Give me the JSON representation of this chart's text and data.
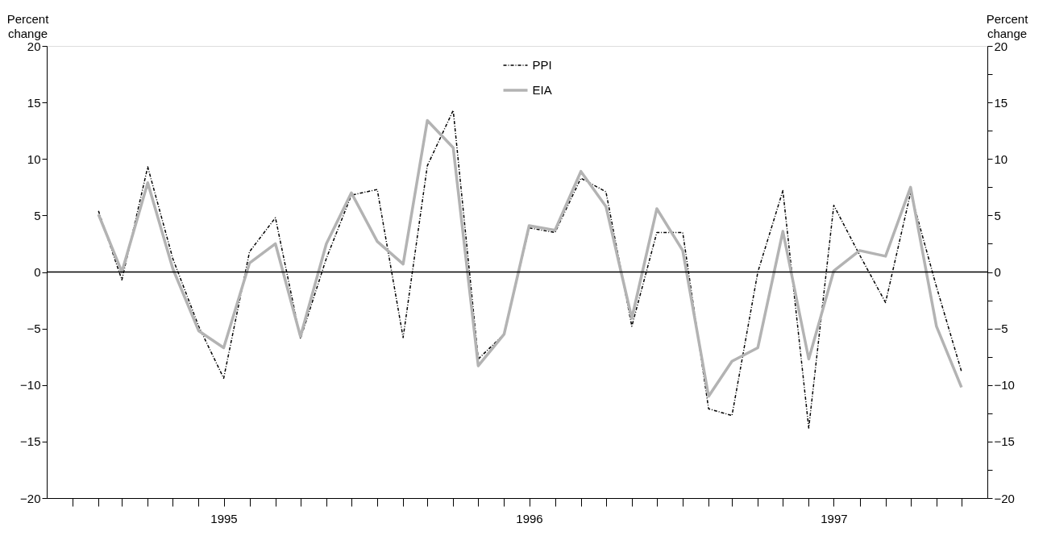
{
  "chart_data": {
    "type": "line",
    "ylabel": "Percent change",
    "y2label": "Percent change",
    "x": [
      "1995-02",
      "1995-03",
      "1995-04",
      "1995-05",
      "1995-06",
      "1995-07",
      "1995-08",
      "1995-09",
      "1995-10",
      "1995-11",
      "1995-12",
      "1996-01",
      "1996-02",
      "1996-03",
      "1996-04",
      "1996-05",
      "1996-06",
      "1996-07",
      "1996-08",
      "1996-09",
      "1996-10",
      "1996-11",
      "1996-12",
      "1997-01",
      "1997-02",
      "1997-03",
      "1997-04",
      "1997-05",
      "1997-06",
      "1997-07",
      "1997-08",
      "1997-09",
      "1997-10",
      "1997-11",
      "1997-12"
    ],
    "series": [
      {
        "name": "PPI",
        "color": "#000000",
        "line_style": "dashed",
        "values": [
          5.4,
          -0.7,
          9.3,
          1.2,
          -4.8,
          -9.4,
          1.8,
          4.8,
          -5.9,
          1.2,
          6.8,
          7.3,
          -5.8,
          9.4,
          14.3,
          -7.7,
          -5.5,
          3.9,
          3.5,
          8.3,
          7.1,
          -4.8,
          3.5,
          3.5,
          -12.1,
          -12.7,
          0.0,
          7.2,
          -13.8,
          5.9,
          1.5,
          -2.7,
          7.0,
          -1.3,
          -8.8
        ]
      },
      {
        "name": "EIA",
        "color": "#b3b3b3",
        "line_style": "solid",
        "values": [
          5.1,
          0.0,
          7.9,
          0.3,
          -5.2,
          -6.7,
          0.8,
          2.5,
          -5.7,
          2.5,
          7.0,
          2.7,
          0.7,
          13.4,
          11.0,
          -8.3,
          -5.5,
          4.1,
          3.7,
          8.9,
          5.8,
          -4.1,
          5.6,
          1.9,
          -11.0,
          -7.9,
          -6.7,
          3.6,
          -7.7,
          0.1,
          1.9,
          1.4,
          7.5,
          -4.8,
          -10.2
        ]
      }
    ],
    "xlim": [
      "1994-12",
      "1998-01"
    ],
    "xticks": [
      {
        "value": "1995-01",
        "label": null
      },
      {
        "value": "1995-02",
        "label": null
      },
      {
        "value": "1995-03",
        "label": null
      },
      {
        "value": "1995-04",
        "label": null
      },
      {
        "value": "1995-05",
        "label": null
      },
      {
        "value": "1995-06",
        "label": null
      },
      {
        "value": "1995-07",
        "label": "1995"
      },
      {
        "value": "1995-08",
        "label": null
      },
      {
        "value": "1995-09",
        "label": null
      },
      {
        "value": "1995-10",
        "label": null
      },
      {
        "value": "1995-11",
        "label": null
      },
      {
        "value": "1995-12",
        "label": null
      },
      {
        "value": "1996-01",
        "label": null
      },
      {
        "value": "1996-02",
        "label": null
      },
      {
        "value": "1996-03",
        "label": null
      },
      {
        "value": "1996-04",
        "label": null
      },
      {
        "value": "1996-05",
        "label": null
      },
      {
        "value": "1996-06",
        "label": null
      },
      {
        "value": "1996-07",
        "label": "1996"
      },
      {
        "value": "1996-08",
        "label": null
      },
      {
        "value": "1996-09",
        "label": null
      },
      {
        "value": "1996-10",
        "label": null
      },
      {
        "value": "1996-11",
        "label": null
      },
      {
        "value": "1996-12",
        "label": null
      },
      {
        "value": "1997-01",
        "label": null
      },
      {
        "value": "1997-02",
        "label": null
      },
      {
        "value": "1997-03",
        "label": null
      },
      {
        "value": "1997-04",
        "label": null
      },
      {
        "value": "1997-05",
        "label": null
      },
      {
        "value": "1997-06",
        "label": null
      },
      {
        "value": "1997-07",
        "label": "1997"
      },
      {
        "value": "1997-08",
        "label": null
      },
      {
        "value": "1997-09",
        "label": null
      },
      {
        "value": "1997-10",
        "label": null
      },
      {
        "value": "1997-11",
        "label": null
      },
      {
        "value": "1997-12",
        "label": null
      }
    ],
    "ylim": [
      -20,
      20
    ],
    "yticks": [
      {
        "value": -20,
        "label": "−20"
      },
      {
        "value": -17.5,
        "label": null
      },
      {
        "value": -15,
        "label": "−15"
      },
      {
        "value": -12.5,
        "label": null
      },
      {
        "value": -10,
        "label": "−10"
      },
      {
        "value": -7.5,
        "label": null
      },
      {
        "value": -5,
        "label": "−5"
      },
      {
        "value": -2.5,
        "label": null
      },
      0,
      {
        "value": 2.5,
        "label": null
      },
      5,
      {
        "value": 7.5,
        "label": null
      },
      10,
      {
        "value": 12.5,
        "label": null
      },
      15,
      {
        "value": 17.5,
        "label": null
      },
      20
    ],
    "y2lim": [
      -20,
      20
    ],
    "y2ticks": [
      {
        "value": -20,
        "label": "−20"
      },
      {
        "value": -17.5,
        "label": null
      },
      {
        "value": -15,
        "label": "−15"
      },
      {
        "value": -12.5,
        "label": null
      },
      {
        "value": -10,
        "label": "−10"
      },
      {
        "value": -7.5,
        "label": null
      },
      {
        "value": -5,
        "label": "−5"
      },
      {
        "value": -2.5,
        "label": null
      },
      0,
      {
        "value": 2.5,
        "label": null
      },
      5,
      {
        "value": 7.5,
        "label": null
      },
      10,
      {
        "value": 12.5,
        "label": null
      },
      15,
      {
        "value": 17.5,
        "label": null
      },
      20
    ],
    "ref_lines": [
      {
        "axis": "y",
        "value": 0,
        "color": "#000000",
        "line_style": "solid"
      }
    ],
    "legend": "top",
    "grid": false
  }
}
